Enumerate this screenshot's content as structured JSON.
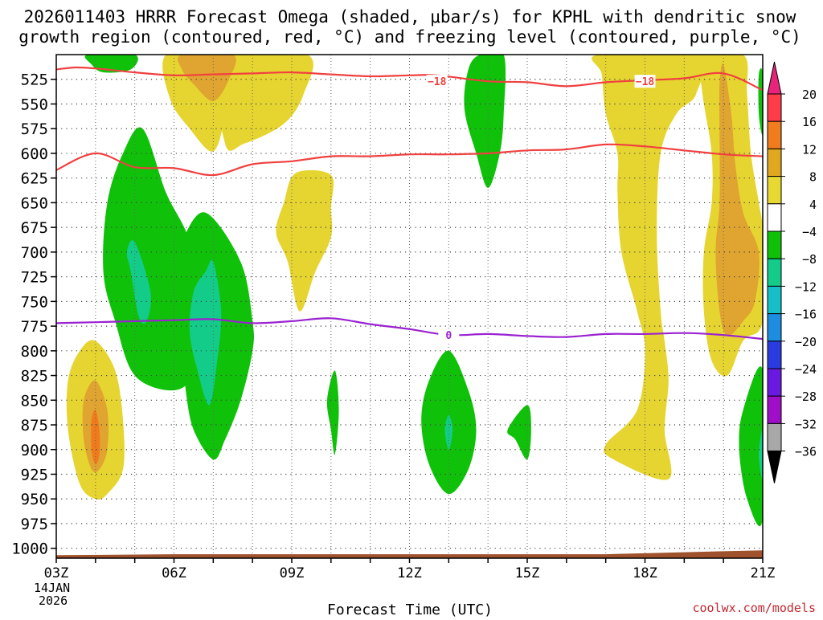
{
  "chart_data": {
    "type": "heatmap",
    "title_line1": "2026011403 HRRR Forecast Omega (shaded, μbar/s) for KPHL with dendritic snow",
    "title_line2": "growth region (contoured, red, °C) and freezing level (contoured, purple, °C)",
    "xlabel": "Forecast Time (UTC)",
    "credit": "coolwx.com/models",
    "date_line1": "14JAN",
    "date_line2": "2026",
    "x_hours": [
      3,
      21
    ],
    "x_ticks": [
      {
        "hour": 3,
        "label": "03Z"
      },
      {
        "hour": 6,
        "label": "06Z"
      },
      {
        "hour": 9,
        "label": "09Z"
      },
      {
        "hour": 12,
        "label": "12Z"
      },
      {
        "hour": 15,
        "label": "15Z"
      },
      {
        "hour": 18,
        "label": "18Z"
      },
      {
        "hour": 21,
        "label": "21Z"
      }
    ],
    "y_range_hpa": [
      500,
      1010
    ],
    "y_ticks": [
      "525",
      "550",
      "575",
      "600",
      "625",
      "650",
      "675",
      "700",
      "725",
      "750",
      "775",
      "800",
      "825",
      "850",
      "875",
      "900",
      "925",
      "950",
      "975",
      "1000"
    ],
    "colorbar": {
      "labels": [
        "20",
        "16",
        "12",
        "8",
        "4",
        "−4",
        "−8",
        "−12",
        "−16",
        "−20",
        "−24",
        "−28",
        "−32",
        "−36"
      ],
      "colors": [
        "#ff3d4a",
        "#f07c1d",
        "#e0a81f",
        "#e8d832",
        "#ffffff",
        "#10c10a",
        "#14cc8a",
        "#16bfc8",
        "#1c8de0",
        "#2a3ce0",
        "#6a1ae0",
        "#a00fc8",
        "#a8a8a8"
      ],
      "over_color": "#e8247a",
      "under_color": "#000000"
    },
    "colors": {
      "yellow": "#e6d530",
      "orange": "#e0a430",
      "dark_orange": "#f07a1c",
      "green": "#10c10a",
      "teal": "#14cc8a",
      "red_contour": "#f04040",
      "purple_contour": "#9a22d0",
      "terrain": "#a0522d"
    },
    "contours": [
      {
        "name": "dgz-top-minus18",
        "label": "−18",
        "color": "red",
        "label_points": [
          [
            12.7,
            527
          ],
          [
            18.0,
            527
          ]
        ],
        "points": [
          [
            3.0,
            515
          ],
          [
            3.5,
            513
          ],
          [
            4.0,
            514
          ],
          [
            5.0,
            518
          ],
          [
            6.0,
            521
          ],
          [
            7.0,
            520
          ],
          [
            8.0,
            519
          ],
          [
            9.0,
            518
          ],
          [
            10.0,
            520
          ],
          [
            11.0,
            522
          ],
          [
            12.0,
            521
          ],
          [
            12.7,
            521
          ],
          [
            14.0,
            527
          ],
          [
            15.0,
            528
          ],
          [
            16.0,
            532
          ],
          [
            17.0,
            528
          ],
          [
            18.0,
            526
          ],
          [
            19.0,
            524
          ],
          [
            20.0,
            519
          ],
          [
            21.0,
            536
          ]
        ]
      },
      {
        "name": "dgz-bottom-minus12",
        "label": "",
        "color": "red",
        "label_points": [],
        "points": [
          [
            3.0,
            617
          ],
          [
            4.0,
            600
          ],
          [
            5.0,
            614
          ],
          [
            6.0,
            615
          ],
          [
            7.0,
            622
          ],
          [
            8.0,
            611
          ],
          [
            9.0,
            608
          ],
          [
            10.0,
            603
          ],
          [
            11.0,
            603
          ],
          [
            12.0,
            601
          ],
          [
            13.0,
            601
          ],
          [
            14.0,
            600
          ],
          [
            15.0,
            597
          ],
          [
            16.0,
            596
          ],
          [
            17.0,
            591
          ],
          [
            18.0,
            593
          ],
          [
            19.0,
            597
          ],
          [
            20.0,
            601
          ],
          [
            21.0,
            603
          ]
        ]
      },
      {
        "name": "freezing-level-0c",
        "label": "0",
        "color": "purple",
        "label_points": [
          [
            13.0,
            784
          ]
        ],
        "points": [
          [
            3.0,
            772
          ],
          [
            4.0,
            771
          ],
          [
            5.0,
            770
          ],
          [
            6.0,
            769
          ],
          [
            7.0,
            768
          ],
          [
            8.0,
            772
          ],
          [
            9.0,
            770
          ],
          [
            10.0,
            767
          ],
          [
            11.0,
            773
          ],
          [
            12.0,
            778
          ],
          [
            13.0,
            784
          ],
          [
            14.0,
            783
          ],
          [
            15.0,
            785
          ],
          [
            16.0,
            786
          ],
          [
            17.0,
            783
          ],
          [
            18.0,
            783
          ],
          [
            19.0,
            782
          ],
          [
            20.0,
            784
          ],
          [
            21.0,
            788
          ]
        ]
      }
    ],
    "shaded_regions": [
      {
        "name": "yellow-top-06z",
        "fill": "yellow",
        "points": [
          [
            5.8,
            500
          ],
          [
            7.2,
            500
          ],
          [
            7.3,
            525
          ],
          [
            7.3,
            560
          ],
          [
            7.0,
            598
          ],
          [
            6.4,
            575
          ],
          [
            5.9,
            545
          ]
        ]
      },
      {
        "name": "yellow-top-07z",
        "fill": "yellow",
        "points": [
          [
            7.2,
            500
          ],
          [
            9.4,
            500
          ],
          [
            9.3,
            540
          ],
          [
            8.8,
            570
          ],
          [
            7.8,
            590
          ],
          [
            7.3,
            590
          ]
        ]
      },
      {
        "name": "orange-top-07z",
        "fill": "orange",
        "points": [
          [
            6.2,
            500
          ],
          [
            7.5,
            500
          ],
          [
            7.4,
            525
          ],
          [
            7.0,
            547
          ],
          [
            6.5,
            530
          ],
          [
            6.2,
            515
          ]
        ]
      },
      {
        "name": "green-top-04z",
        "fill": "green",
        "points": [
          [
            3.8,
            500
          ],
          [
            5.0,
            500
          ],
          [
            4.9,
            515
          ],
          [
            4.2,
            518
          ],
          [
            3.9,
            510
          ]
        ]
      },
      {
        "name": "yellow-09z",
        "fill": "yellow",
        "points": [
          [
            9.1,
            620
          ],
          [
            10.0,
            622
          ],
          [
            10.0,
            655
          ],
          [
            10.0,
            685
          ],
          [
            9.6,
            720
          ],
          [
            9.2,
            760
          ],
          [
            8.9,
            710
          ],
          [
            8.6,
            680
          ],
          [
            8.8,
            650
          ]
        ]
      },
      {
        "name": "green-05z",
        "fill": "green",
        "points": [
          [
            5.2,
            575
          ],
          [
            5.8,
            640
          ],
          [
            6.4,
            690
          ],
          [
            6.6,
            760
          ],
          [
            6.5,
            820
          ],
          [
            6.0,
            840
          ],
          [
            5.0,
            825
          ],
          [
            4.5,
            770
          ],
          [
            4.2,
            720
          ],
          [
            4.3,
            650
          ],
          [
            4.7,
            600
          ]
        ]
      },
      {
        "name": "teal-05z",
        "fill": "teal",
        "points": [
          [
            5.0,
            690
          ],
          [
            5.4,
            740
          ],
          [
            5.3,
            770
          ],
          [
            5.1,
            765
          ],
          [
            4.9,
            720
          ],
          [
            4.8,
            700
          ]
        ]
      },
      {
        "name": "green-07z",
        "fill": "green",
        "points": [
          [
            6.8,
            660
          ],
          [
            7.7,
            710
          ],
          [
            8.0,
            770
          ],
          [
            8.0,
            800
          ],
          [
            7.7,
            850
          ],
          [
            7.3,
            890
          ],
          [
            7.0,
            910
          ],
          [
            6.5,
            880
          ],
          [
            6.3,
            840
          ],
          [
            6.2,
            790
          ],
          [
            6.0,
            730
          ],
          [
            6.2,
            690
          ]
        ]
      },
      {
        "name": "teal-07z",
        "fill": "teal",
        "points": [
          [
            7.0,
            710
          ],
          [
            7.2,
            760
          ],
          [
            7.1,
            810
          ],
          [
            6.9,
            855
          ],
          [
            6.6,
            820
          ],
          [
            6.4,
            780
          ],
          [
            6.5,
            740
          ],
          [
            6.8,
            720
          ]
        ]
      },
      {
        "name": "yellow-04z",
        "fill": "yellow",
        "points": [
          [
            4.0,
            790
          ],
          [
            4.5,
            820
          ],
          [
            4.7,
            870
          ],
          [
            4.7,
            920
          ],
          [
            4.3,
            945
          ],
          [
            4.0,
            950
          ],
          [
            3.6,
            935
          ],
          [
            3.3,
            880
          ],
          [
            3.3,
            830
          ],
          [
            3.6,
            800
          ]
        ]
      },
      {
        "name": "orange-04z",
        "fill": "orange",
        "points": [
          [
            4.0,
            830
          ],
          [
            4.3,
            860
          ],
          [
            4.3,
            900
          ],
          [
            4.1,
            920
          ],
          [
            3.9,
            920
          ],
          [
            3.7,
            890
          ],
          [
            3.7,
            850
          ]
        ]
      },
      {
        "name": "darkorange-04z",
        "fill": "dark_orange",
        "points": [
          [
            4.0,
            860
          ],
          [
            4.1,
            880
          ],
          [
            4.1,
            905
          ],
          [
            4.0,
            915
          ],
          [
            3.9,
            900
          ],
          [
            3.9,
            870
          ]
        ]
      },
      {
        "name": "green-10z",
        "fill": "green",
        "points": [
          [
            10.1,
            820
          ],
          [
            10.2,
            860
          ],
          [
            10.1,
            905
          ],
          [
            10.0,
            880
          ],
          [
            9.9,
            850
          ]
        ]
      },
      {
        "name": "green-13z",
        "fill": "green",
        "points": [
          [
            13.0,
            800
          ],
          [
            13.5,
            840
          ],
          [
            13.7,
            880
          ],
          [
            13.5,
            920
          ],
          [
            13.0,
            945
          ],
          [
            12.5,
            915
          ],
          [
            12.3,
            870
          ],
          [
            12.5,
            830
          ]
        ]
      },
      {
        "name": "teal-13z",
        "fill": "teal",
        "points": [
          [
            13.0,
            865
          ],
          [
            13.1,
            880
          ],
          [
            13.0,
            900
          ],
          [
            12.9,
            880
          ]
        ]
      },
      {
        "name": "green-14z",
        "fill": "green",
        "points": [
          [
            13.8,
            500
          ],
          [
            14.4,
            500
          ],
          [
            14.4,
            560
          ],
          [
            14.3,
            600
          ],
          [
            14.0,
            635
          ],
          [
            13.7,
            600
          ],
          [
            13.4,
            555
          ],
          [
            13.5,
            515
          ]
        ]
      },
      {
        "name": "green-1530z",
        "fill": "green",
        "points": [
          [
            15.0,
            855
          ],
          [
            15.1,
            880
          ],
          [
            15.0,
            910
          ],
          [
            14.7,
            890
          ],
          [
            14.5,
            880
          ]
        ]
      },
      {
        "name": "yellow-18z",
        "fill": "yellow",
        "points": [
          [
            16.8,
            500
          ],
          [
            19.3,
            500
          ],
          [
            19.3,
            540
          ],
          [
            18.8,
            560
          ],
          [
            18.4,
            600
          ],
          [
            18.3,
            680
          ],
          [
            18.4,
            760
          ],
          [
            18.5,
            790
          ],
          [
            18.6,
            830
          ],
          [
            18.5,
            880
          ],
          [
            18.6,
            930
          ],
          [
            17.2,
            910
          ],
          [
            17.0,
            895
          ],
          [
            17.8,
            860
          ],
          [
            18.0,
            800
          ],
          [
            17.8,
            760
          ],
          [
            17.4,
            700
          ],
          [
            17.3,
            640
          ],
          [
            17.3,
            600
          ],
          [
            17.0,
            560
          ],
          [
            16.9,
            520
          ]
        ]
      },
      {
        "name": "yellow-20z",
        "fill": "yellow",
        "points": [
          [
            19.3,
            500
          ],
          [
            20.5,
            500
          ],
          [
            20.6,
            540
          ],
          [
            20.7,
            600
          ],
          [
            20.9,
            650
          ],
          [
            21.0,
            680
          ],
          [
            21.0,
            760
          ],
          [
            20.9,
            780
          ],
          [
            20.5,
            790
          ],
          [
            20.1,
            825
          ],
          [
            19.7,
            810
          ],
          [
            19.5,
            760
          ],
          [
            19.5,
            700
          ],
          [
            19.7,
            650
          ],
          [
            19.7,
            600
          ],
          [
            19.5,
            550
          ],
          [
            19.4,
            520
          ]
        ]
      },
      {
        "name": "orange-20z",
        "fill": "orange",
        "points": [
          [
            20.0,
            510
          ],
          [
            20.2,
            560
          ],
          [
            20.3,
            610
          ],
          [
            20.5,
            660
          ],
          [
            20.9,
            700
          ],
          [
            20.8,
            750
          ],
          [
            20.5,
            770
          ],
          [
            20.1,
            785
          ],
          [
            19.9,
            760
          ],
          [
            19.8,
            700
          ],
          [
            19.9,
            650
          ],
          [
            19.9,
            580
          ],
          [
            19.9,
            530
          ]
        ]
      },
      {
        "name": "green-21z-top",
        "fill": "green",
        "points": [
          [
            20.9,
            520
          ],
          [
            21.0,
            520
          ],
          [
            21.0,
            580
          ],
          [
            20.9,
            560
          ]
        ]
      },
      {
        "name": "green-21z-low",
        "fill": "green",
        "points": [
          [
            21.0,
            820
          ],
          [
            21.0,
            970
          ],
          [
            20.6,
            950
          ],
          [
            20.4,
            900
          ],
          [
            20.5,
            860
          ]
        ]
      },
      {
        "name": "teal-21z-low",
        "fill": "teal",
        "points": [
          [
            21.0,
            880
          ],
          [
            21.0,
            930
          ],
          [
            20.9,
            905
          ]
        ]
      }
    ],
    "terrain_profile": [
      [
        3.0,
        1007
      ],
      [
        6.0,
        1006
      ],
      [
        9.0,
        1006
      ],
      [
        12.0,
        1006
      ],
      [
        15.0,
        1006
      ],
      [
        17.0,
        1006
      ],
      [
        18.0,
        1005
      ],
      [
        19.0,
        1004
      ],
      [
        20.0,
        1003
      ],
      [
        21.0,
        1002
      ]
    ]
  }
}
